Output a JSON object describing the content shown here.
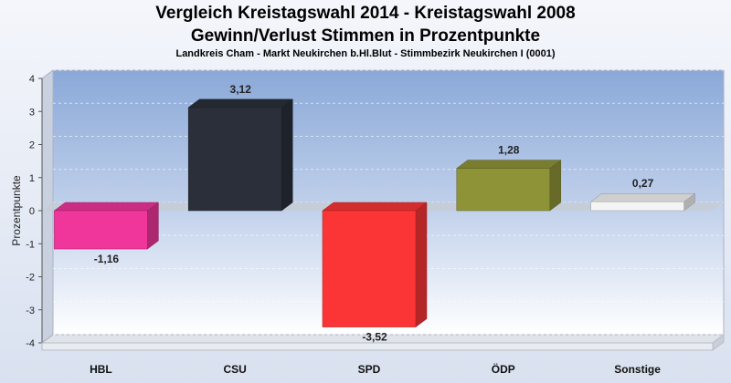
{
  "chart_data": {
    "type": "bar",
    "title": "Vergleich Kreistagswahl 2014 - Kreistagswahl 2008",
    "subtitle": "Gewinn/Verlust Stimmen in Prozentpunkte",
    "subsubtitle": "Landkreis Cham - Markt Neukirchen b.Hl.Blut - Stimmbezirk Neukirchen I (0001)",
    "ylabel": "Prozentpunkte",
    "ylim": [
      -4,
      4
    ],
    "yticks": [
      4,
      3,
      2,
      1,
      0,
      -1,
      -2,
      -3,
      -4
    ],
    "categories": [
      "HBL",
      "CSU",
      "SPD",
      "ÖDP",
      "Sonstige"
    ],
    "values": [
      -1.16,
      3.12,
      -3.52,
      1.28,
      0.27
    ],
    "value_labels": [
      "-1,16",
      "3,12",
      "-3,52",
      "1,28",
      "0,27"
    ],
    "colors": [
      "#f0359b",
      "#2a2f3a",
      "#fb3535",
      "#8f9337",
      "#f4f4f4"
    ],
    "grid": true,
    "legend": "none"
  }
}
